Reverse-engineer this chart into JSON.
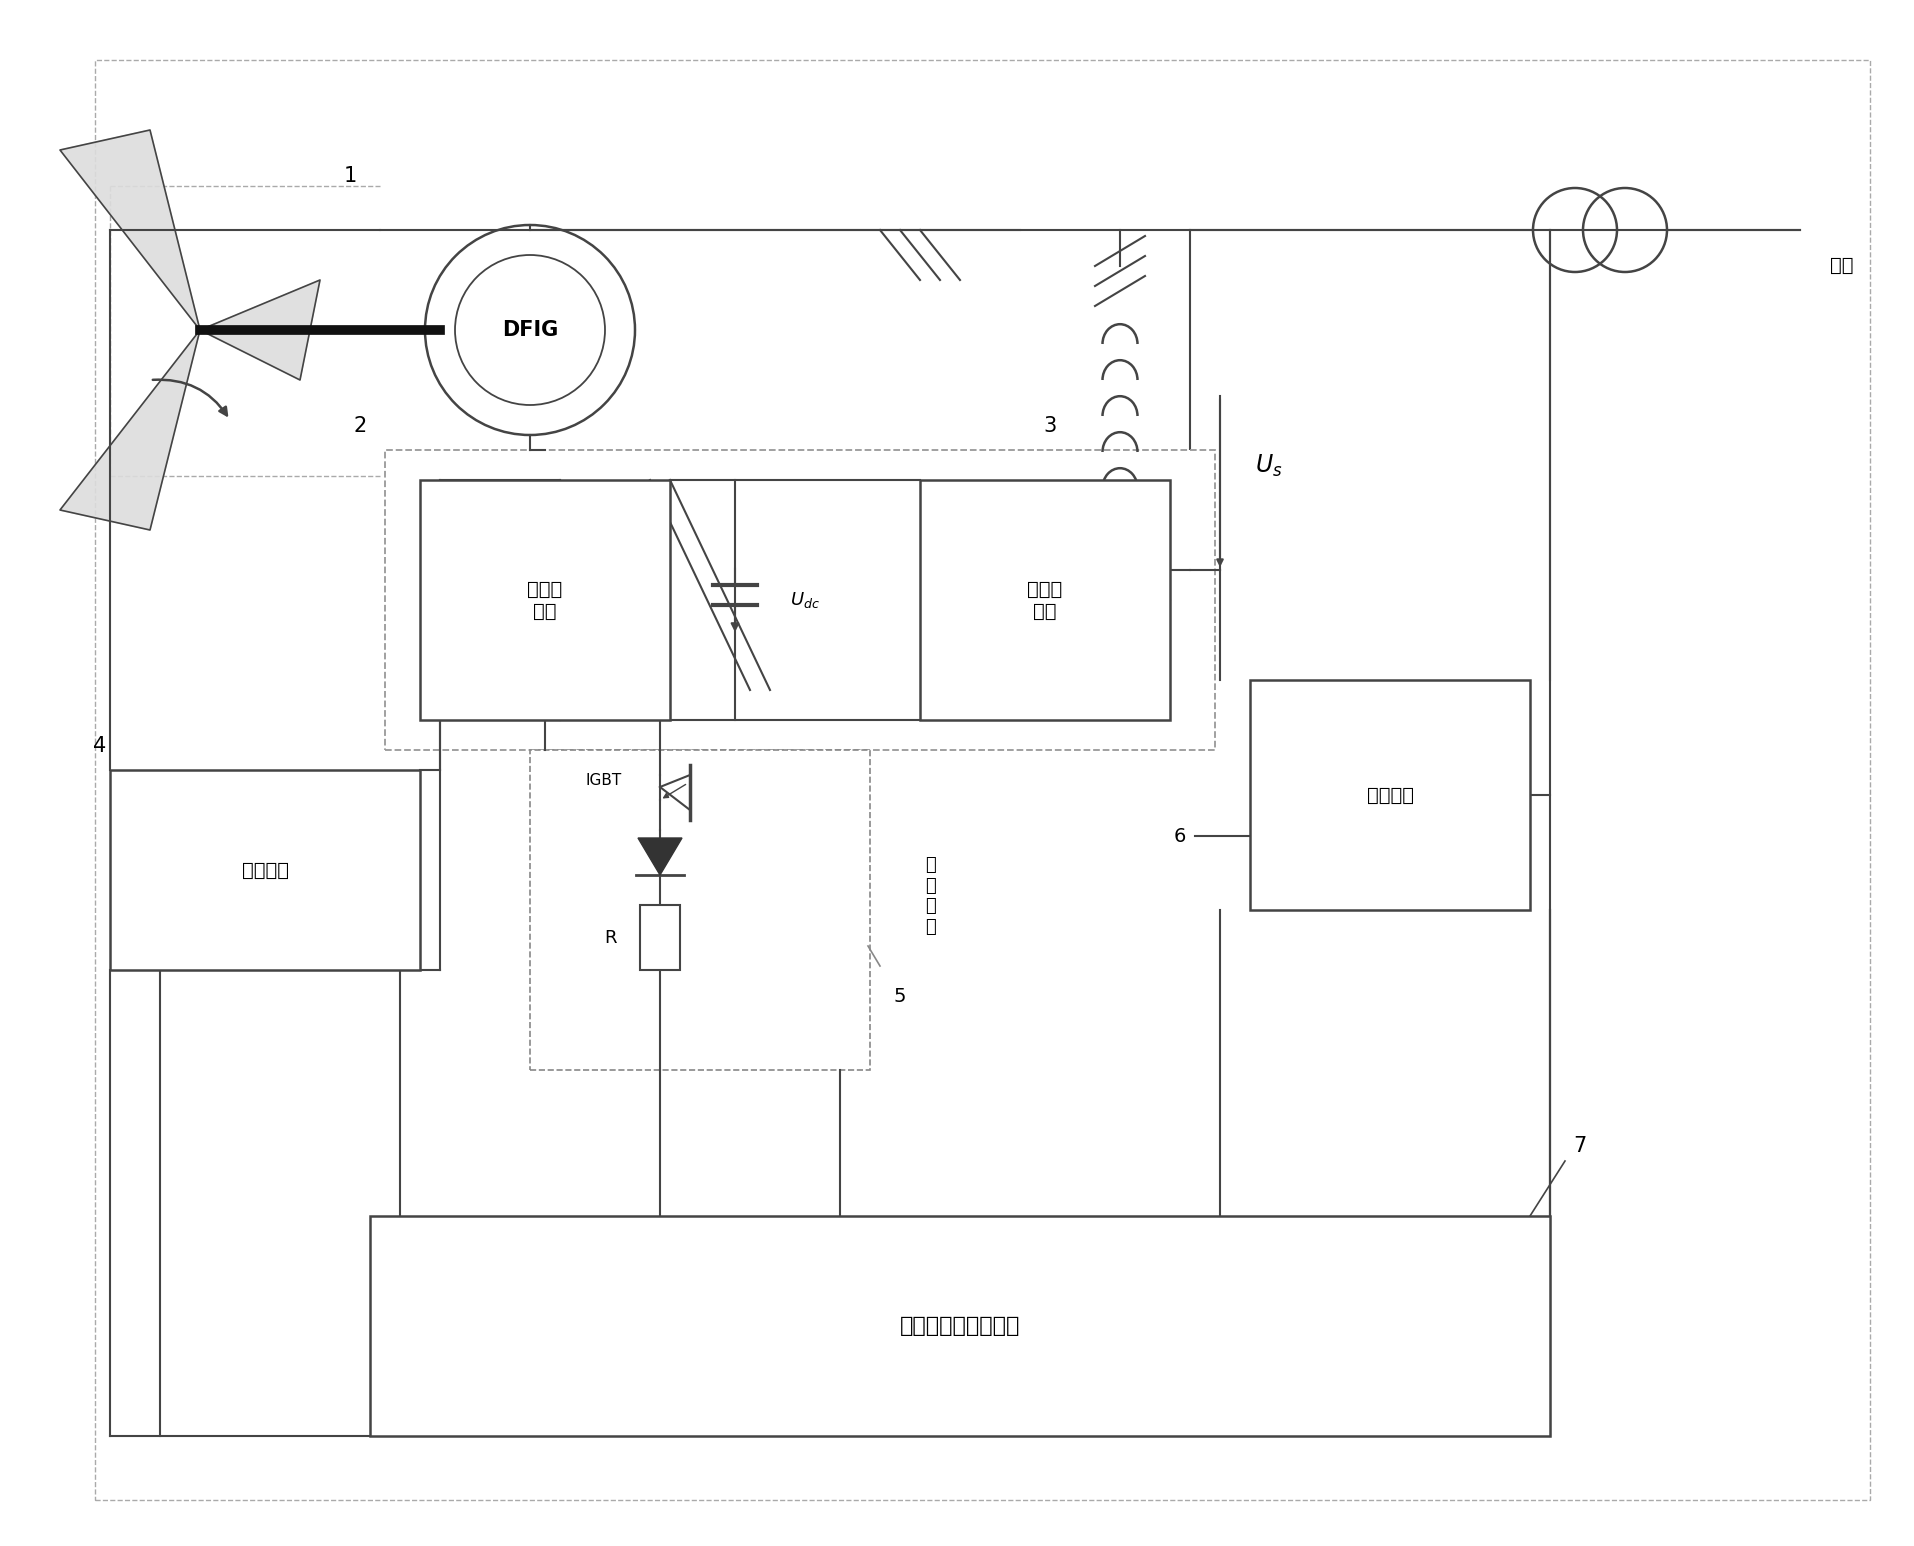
{
  "bg_color": "#ffffff",
  "lc": "#444444",
  "dc": "#888888",
  "figsize": [
    19.15,
    15.46
  ],
  "dpi": 100,
  "labels": {
    "DFIG": "DFIG",
    "machine_conv": "机侧变\n换器",
    "grid_conv": "网侧变\n换器",
    "voltage_detect": "电压检测",
    "energy_storage": "储能装置",
    "lvrt": "低电压穿越控制模块",
    "chopper": "煁荷电路",
    "chopper_v": "煁\n荷\n电\n路",
    "grid": "电网",
    "Udc": "$U_{dc}$",
    "Us": "$\\boldsymbol{U_s}$",
    "IGBT": "IGBT",
    "R": "R",
    "n1": "1",
    "n2": "2",
    "n3": "3",
    "n4": "4",
    "n5": "5",
    "n6": "6",
    "n7": "7"
  }
}
